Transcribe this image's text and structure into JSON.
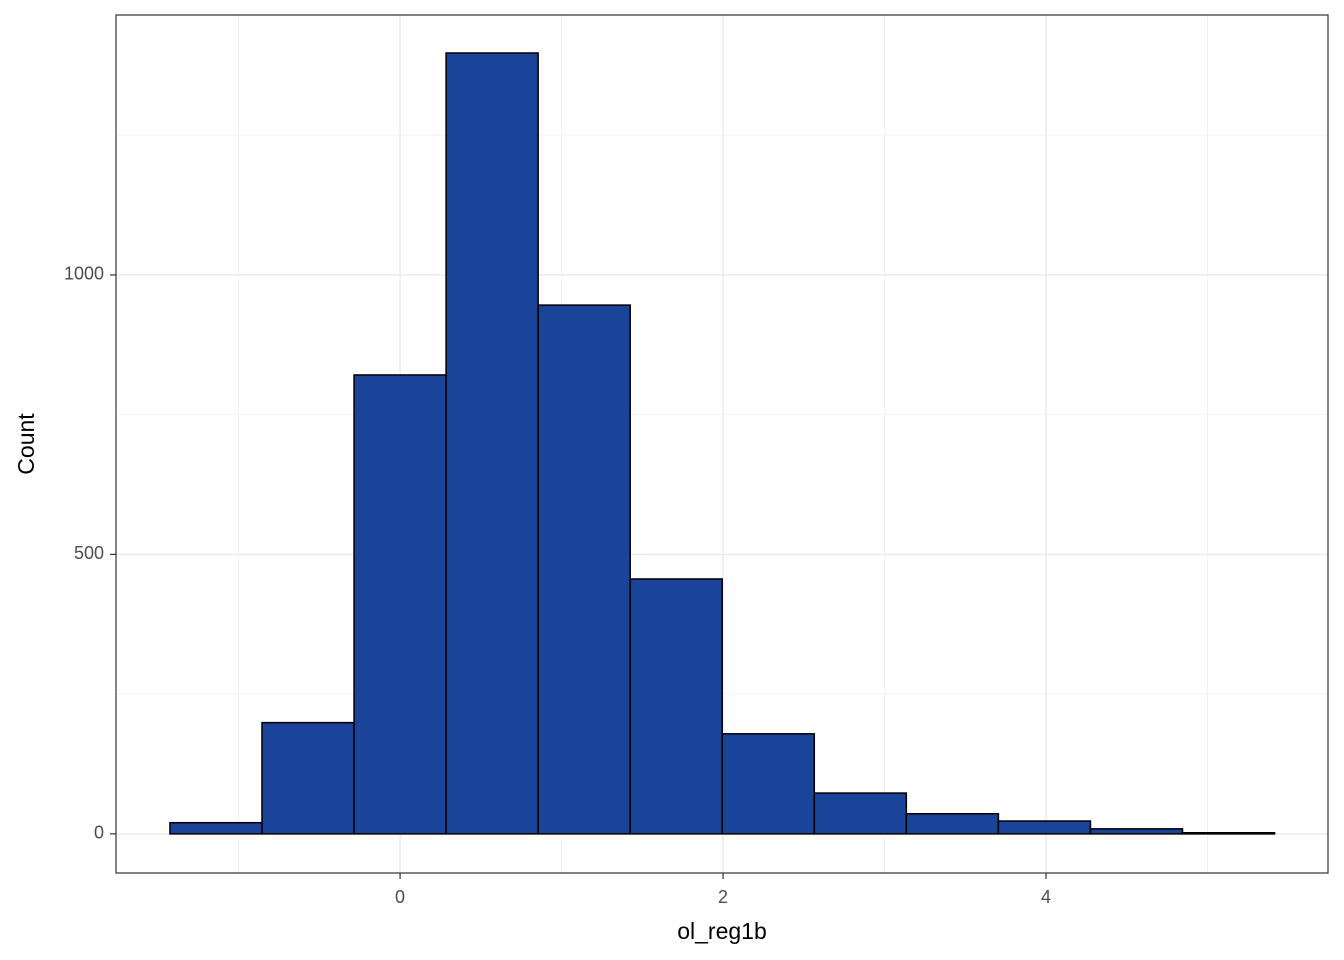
{
  "chart_data": {
    "type": "histogram",
    "x_label": "ol_reg1b",
    "y_label": "Count",
    "bins": [
      -1.425,
      -0.855,
      -0.285,
      0.285,
      0.855,
      1.425,
      1.995,
      2.565,
      3.135,
      3.705,
      4.275,
      4.845,
      5.415
    ],
    "values": [
      20,
      199,
      821,
      1397,
      946,
      456,
      179,
      73,
      36,
      23,
      9,
      2
    ],
    "color": "#1a4499",
    "edgecolor": "#000000",
    "xlim": [
      -1.759,
      5.746
    ],
    "ylim": [
      -70,
      1465
    ],
    "xticks": [
      0,
      2,
      4
    ],
    "yticks": [
      0,
      500,
      1000
    ],
    "minor_xticks": [
      -1,
      1,
      3,
      5
    ],
    "minor_yticks": [
      250,
      750,
      1250
    ],
    "grid": true
  }
}
